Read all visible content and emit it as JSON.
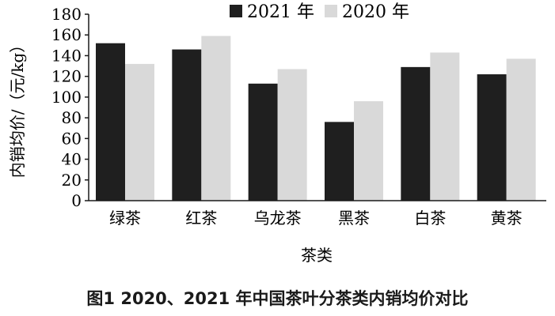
{
  "caption": "图1 2020、2021 年中国茶叶分茶类内销均价对比",
  "chart_data": {
    "type": "bar",
    "title": "",
    "xlabel": "茶类",
    "ylabel": "内销均价/（元/kg）",
    "ylim": [
      0,
      180
    ],
    "yticks": [
      0,
      20,
      40,
      60,
      80,
      100,
      120,
      140,
      160,
      180
    ],
    "categories": [
      "绿茶",
      "红茶",
      "乌龙茶",
      "黑茶",
      "白茶",
      "黄茶"
    ],
    "series": [
      {
        "name": "2021 年",
        "color": "#1f1f1f",
        "values": [
          152,
          146,
          113,
          76,
          129,
          122
        ]
      },
      {
        "name": "2020 年",
        "color": "#d9d9d9",
        "values": [
          132,
          159,
          127,
          96,
          143,
          137
        ]
      }
    ],
    "legend": "top",
    "grid": false
  }
}
